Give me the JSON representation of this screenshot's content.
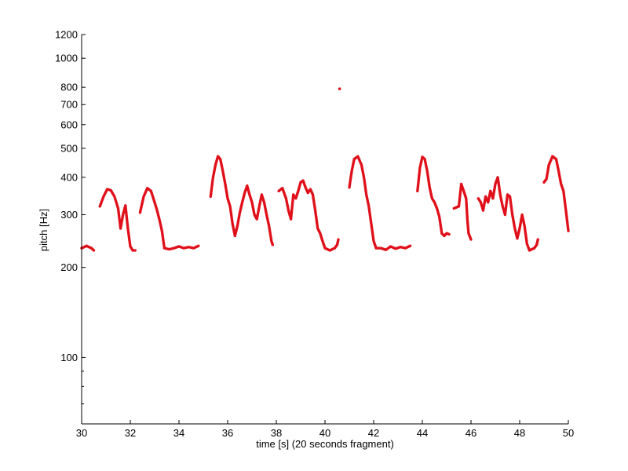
{
  "chart_data": {
    "type": "scatter",
    "title": "",
    "xlabel": "time [s] (20 seconds fragment)",
    "ylabel": "pitch [Hz]",
    "xlim": [
      30,
      50
    ],
    "ylim": [
      60,
      1200
    ],
    "y_scale": "log",
    "grid": false,
    "legend": "none",
    "marker_color": "#e0111b",
    "x_ticks": [
      30,
      32,
      34,
      36,
      38,
      40,
      42,
      44,
      46,
      48,
      50
    ],
    "x_tick_labels": [
      "30",
      "32",
      "34",
      "36",
      "38",
      "40",
      "42",
      "44",
      "46",
      "48",
      "50"
    ],
    "y_ticks": [
      100,
      200,
      300,
      400,
      500,
      600,
      700,
      800,
      1000,
      1200
    ],
    "y_tick_labels": [
      "100",
      "200",
      "300",
      "400",
      "500",
      "600",
      "700",
      "800",
      "1000",
      "1200"
    ],
    "y_minor_ticks": [
      70,
      80,
      90
    ],
    "contours": [
      [
        [
          30.0,
          232
        ],
        [
          30.2,
          236
        ],
        [
          30.4,
          232
        ],
        [
          30.5,
          228
        ]
      ],
      [
        [
          30.75,
          320
        ],
        [
          30.9,
          345
        ],
        [
          31.05,
          365
        ],
        [
          31.2,
          362
        ],
        [
          31.35,
          345
        ],
        [
          31.5,
          315
        ],
        [
          31.6,
          270
        ],
        [
          31.7,
          300
        ],
        [
          31.8,
          322
        ],
        [
          31.9,
          270
        ],
        [
          32.0,
          235
        ],
        [
          32.1,
          228
        ],
        [
          32.2,
          228
        ]
      ],
      [
        [
          32.4,
          305
        ],
        [
          32.55,
          345
        ],
        [
          32.7,
          368
        ],
        [
          32.85,
          360
        ],
        [
          33.0,
          330
        ],
        [
          33.1,
          310
        ],
        [
          33.2,
          288
        ],
        [
          33.3,
          265
        ],
        [
          33.4,
          232
        ],
        [
          33.6,
          230
        ],
        [
          33.8,
          232
        ],
        [
          34.0,
          235
        ],
        [
          34.2,
          232
        ],
        [
          34.4,
          234
        ],
        [
          34.6,
          232
        ],
        [
          34.8,
          236
        ]
      ],
      [
        [
          35.3,
          345
        ],
        [
          35.4,
          400
        ],
        [
          35.5,
          440
        ],
        [
          35.6,
          470
        ],
        [
          35.7,
          460
        ],
        [
          35.8,
          420
        ],
        [
          35.9,
          380
        ],
        [
          36.0,
          340
        ],
        [
          36.1,
          320
        ],
        [
          36.2,
          280
        ],
        [
          36.3,
          255
        ],
        [
          36.4,
          275
        ],
        [
          36.5,
          305
        ],
        [
          36.6,
          330
        ],
        [
          36.7,
          355
        ],
        [
          36.8,
          375
        ],
        [
          36.9,
          350
        ],
        [
          37.0,
          330
        ],
        [
          37.1,
          300
        ],
        [
          37.2,
          290
        ],
        [
          37.3,
          320
        ],
        [
          37.4,
          350
        ],
        [
          37.5,
          330
        ],
        [
          37.6,
          300
        ],
        [
          37.7,
          275
        ],
        [
          37.8,
          245
        ],
        [
          37.85,
          238
        ]
      ],
      [
        [
          38.1,
          360
        ],
        [
          38.25,
          368
        ],
        [
          38.4,
          340
        ],
        [
          38.5,
          310
        ],
        [
          38.6,
          290
        ],
        [
          38.7,
          350
        ],
        [
          38.8,
          340
        ],
        [
          38.9,
          360
        ],
        [
          39.0,
          385
        ],
        [
          39.1,
          390
        ],
        [
          39.2,
          370
        ],
        [
          39.3,
          355
        ],
        [
          39.4,
          365
        ],
        [
          39.5,
          350
        ],
        [
          39.6,
          310
        ],
        [
          39.7,
          270
        ],
        [
          39.8,
          260
        ],
        [
          39.9,
          245
        ],
        [
          40.0,
          232
        ],
        [
          40.2,
          228
        ],
        [
          40.4,
          232
        ],
        [
          40.5,
          238
        ],
        [
          40.55,
          248
        ]
      ],
      [
        [
          40.6,
          790
        ]
      ],
      [
        [
          41.0,
          370
        ],
        [
          41.1,
          420
        ],
        [
          41.2,
          460
        ],
        [
          41.35,
          470
        ],
        [
          41.5,
          440
        ],
        [
          41.6,
          400
        ],
        [
          41.7,
          350
        ],
        [
          41.8,
          320
        ],
        [
          41.9,
          280
        ],
        [
          42.0,
          245
        ],
        [
          42.1,
          232
        ],
        [
          42.3,
          232
        ],
        [
          42.5,
          229
        ],
        [
          42.7,
          235
        ],
        [
          42.9,
          231
        ],
        [
          43.1,
          234
        ],
        [
          43.3,
          232
        ],
        [
          43.5,
          236
        ]
      ],
      [
        [
          43.8,
          360
        ],
        [
          43.9,
          430
        ],
        [
          44.0,
          468
        ],
        [
          44.1,
          460
        ],
        [
          44.2,
          420
        ],
        [
          44.3,
          370
        ],
        [
          44.4,
          340
        ],
        [
          44.5,
          330
        ],
        [
          44.6,
          315
        ],
        [
          44.7,
          295
        ],
        [
          44.8,
          260
        ],
        [
          44.9,
          255
        ],
        [
          45.0,
          260
        ],
        [
          45.1,
          258
        ]
      ],
      [
        [
          45.3,
          315
        ],
        [
          45.5,
          320
        ],
        [
          45.6,
          380
        ],
        [
          45.7,
          360
        ],
        [
          45.8,
          340
        ],
        [
          45.85,
          290
        ],
        [
          45.9,
          260
        ],
        [
          46.0,
          248
        ]
      ],
      [
        [
          46.3,
          340
        ],
        [
          46.4,
          330
        ],
        [
          46.5,
          310
        ],
        [
          46.6,
          345
        ],
        [
          46.7,
          330
        ],
        [
          46.8,
          360
        ],
        [
          46.9,
          340
        ],
        [
          47.0,
          380
        ],
        [
          47.1,
          400
        ],
        [
          47.2,
          350
        ],
        [
          47.3,
          320
        ],
        [
          47.4,
          300
        ],
        [
          47.5,
          350
        ],
        [
          47.6,
          345
        ],
        [
          47.7,
          300
        ],
        [
          47.8,
          270
        ],
        [
          47.9,
          250
        ],
        [
          48.0,
          270
        ],
        [
          48.1,
          300
        ],
        [
          48.2,
          275
        ],
        [
          48.3,
          240
        ],
        [
          48.4,
          228
        ],
        [
          48.6,
          232
        ],
        [
          48.7,
          238
        ],
        [
          48.75,
          248
        ]
      ],
      [
        [
          49.0,
          385
        ],
        [
          49.1,
          395
        ],
        [
          49.2,
          440
        ],
        [
          49.35,
          470
        ],
        [
          49.5,
          460
        ],
        [
          49.6,
          420
        ],
        [
          49.7,
          380
        ],
        [
          49.8,
          360
        ],
        [
          49.9,
          310
        ],
        [
          50.0,
          265
        ]
      ]
    ]
  }
}
